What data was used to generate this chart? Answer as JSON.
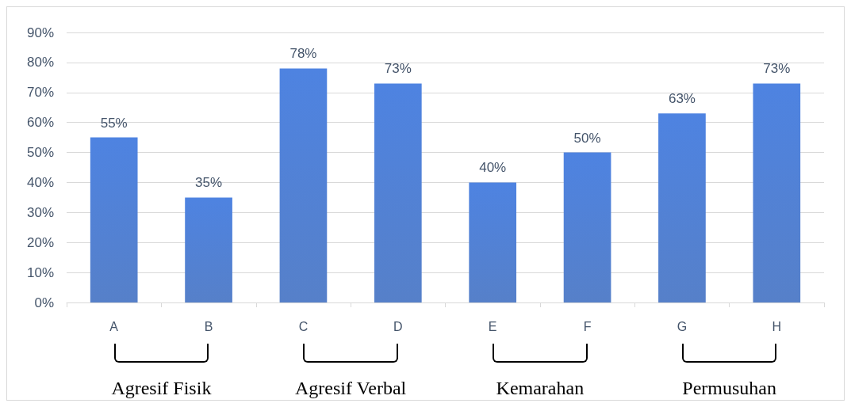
{
  "chart_data": {
    "type": "bar",
    "categories": [
      "A",
      "B",
      "C",
      "D",
      "E",
      "F",
      "G",
      "H"
    ],
    "values": [
      55,
      35,
      78,
      73,
      40,
      50,
      63,
      73
    ],
    "value_labels": [
      "55%",
      "35%",
      "78%",
      "73%",
      "40%",
      "50%",
      "63%",
      "73%"
    ],
    "color": "#4472c4",
    "ylim": [
      0,
      90
    ],
    "yticks": [
      {
        "value": 0,
        "label": "0%"
      },
      {
        "value": 10,
        "label": "10%"
      },
      {
        "value": 20,
        "label": "20%"
      },
      {
        "value": 30,
        "label": "30%"
      },
      {
        "value": 40,
        "label": "40%"
      },
      {
        "value": 50,
        "label": "50%"
      },
      {
        "value": 60,
        "label": "60%"
      },
      {
        "value": 70,
        "label": "70%"
      },
      {
        "value": 80,
        "label": "80%"
      },
      {
        "value": 90,
        "label": "90%"
      }
    ],
    "grid": "y",
    "annotations": [
      "Agresif Fisik",
      "Agresif Verbal",
      "Kemarahan",
      "Permusuhan"
    ]
  }
}
